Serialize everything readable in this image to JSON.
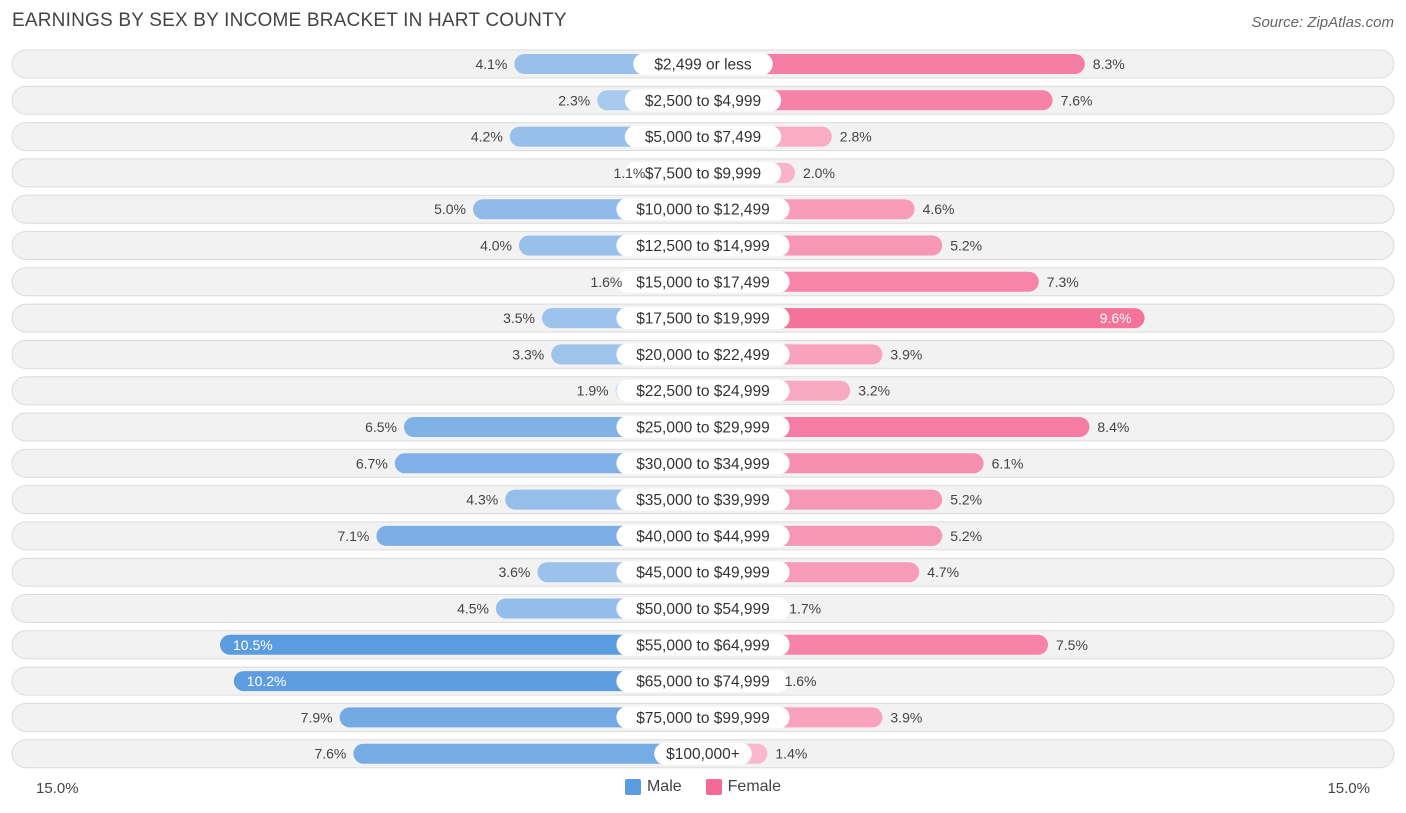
{
  "chart_data": {
    "type": "bar",
    "title": "EARNINGS BY SEX BY INCOME BRACKET IN HART COUNTY",
    "source": "Source: ZipAtlas.com",
    "xlim": [
      -15.0,
      15.0
    ],
    "axis_left_label": "15.0%",
    "axis_right_label": "15.0%",
    "categories": [
      "$2,499 or less",
      "$2,500 to $4,999",
      "$5,000 to $7,499",
      "$7,500 to $9,999",
      "$10,000 to $12,499",
      "$12,500 to $14,999",
      "$15,000 to $17,499",
      "$17,500 to $19,999",
      "$20,000 to $22,499",
      "$22,500 to $24,999",
      "$25,000 to $29,999",
      "$30,000 to $34,999",
      "$35,000 to $39,999",
      "$40,000 to $44,999",
      "$45,000 to $49,999",
      "$50,000 to $54,999",
      "$55,000 to $64,999",
      "$65,000 to $74,999",
      "$75,000 to $99,999",
      "$100,000+"
    ],
    "series": [
      {
        "name": "Male",
        "color": "#5b9bdf",
        "values": [
          4.1,
          2.3,
          4.2,
          1.1,
          5.0,
          4.0,
          1.6,
          3.5,
          3.3,
          1.9,
          6.5,
          6.7,
          4.3,
          7.1,
          3.6,
          4.5,
          10.5,
          10.2,
          7.9,
          7.6
        ],
        "labels": [
          "4.1%",
          "2.3%",
          "4.2%",
          "1.1%",
          "5.0%",
          "4.0%",
          "1.6%",
          "3.5%",
          "3.3%",
          "1.9%",
          "6.5%",
          "6.7%",
          "4.3%",
          "7.1%",
          "3.6%",
          "4.5%",
          "10.5%",
          "10.2%",
          "7.9%",
          "7.6%"
        ]
      },
      {
        "name": "Female",
        "color": "#f46a96",
        "values": [
          8.3,
          7.6,
          2.8,
          2.0,
          4.6,
          5.2,
          7.3,
          9.6,
          3.9,
          3.2,
          8.4,
          6.1,
          5.2,
          5.2,
          4.7,
          1.7,
          7.5,
          1.6,
          3.9,
          1.4
        ],
        "labels": [
          "8.3%",
          "7.6%",
          "2.8%",
          "2.0%",
          "4.6%",
          "5.2%",
          "7.3%",
          "9.6%",
          "3.9%",
          "3.2%",
          "8.4%",
          "6.1%",
          "5.2%",
          "5.2%",
          "4.7%",
          "1.7%",
          "7.5%",
          "1.6%",
          "3.9%",
          "1.4%"
        ]
      }
    ],
    "legend": [
      "Male",
      "Female"
    ]
  }
}
